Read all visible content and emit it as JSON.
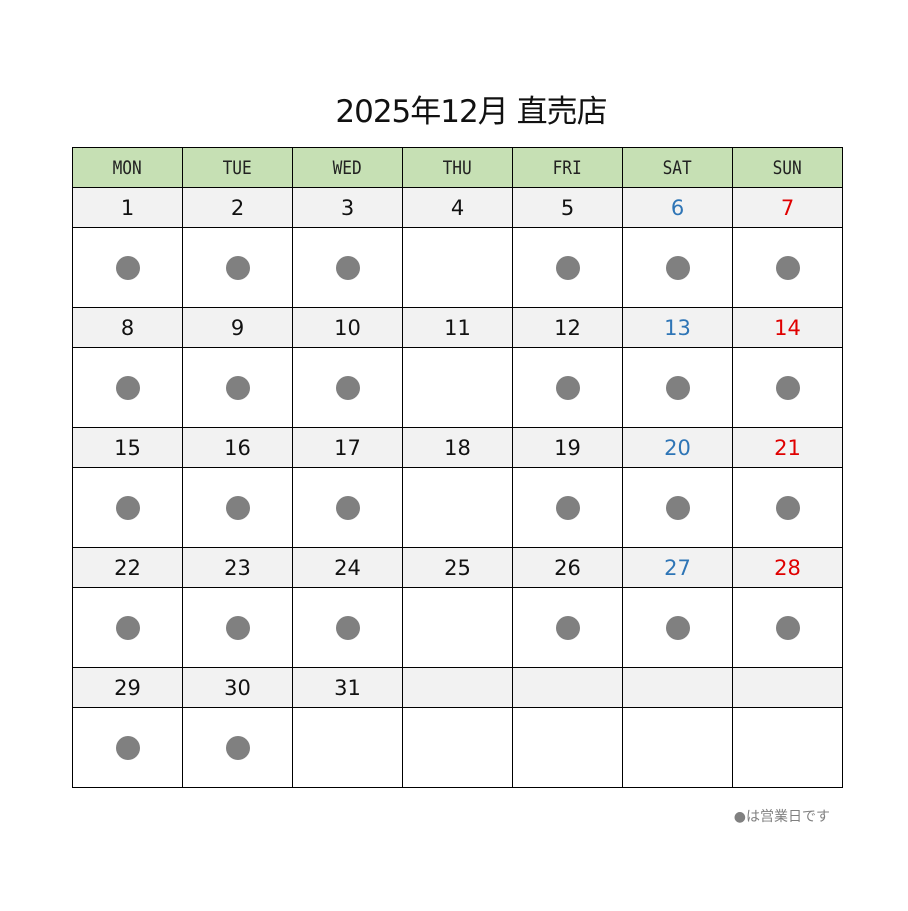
{
  "title": "2025年12月 直売店",
  "colors": {
    "header_bg": "#c6e0b4",
    "date_bg": "#f2f2f2",
    "saturday": "#2e75b6",
    "sunday": "#e00000",
    "open_dot": "#808080"
  },
  "weekdays": [
    "MON",
    "TUE",
    "WED",
    "THU",
    "FRI",
    "SAT",
    "SUN"
  ],
  "weeks": [
    [
      {
        "day": "1",
        "open": true
      },
      {
        "day": "2",
        "open": true
      },
      {
        "day": "3",
        "open": true
      },
      {
        "day": "4",
        "open": false
      },
      {
        "day": "5",
        "open": true
      },
      {
        "day": "6",
        "open": true
      },
      {
        "day": "7",
        "open": true
      }
    ],
    [
      {
        "day": "8",
        "open": true
      },
      {
        "day": "9",
        "open": true
      },
      {
        "day": "10",
        "open": true
      },
      {
        "day": "11",
        "open": false
      },
      {
        "day": "12",
        "open": true
      },
      {
        "day": "13",
        "open": true
      },
      {
        "day": "14",
        "open": true
      }
    ],
    [
      {
        "day": "15",
        "open": true
      },
      {
        "day": "16",
        "open": true
      },
      {
        "day": "17",
        "open": true
      },
      {
        "day": "18",
        "open": false
      },
      {
        "day": "19",
        "open": true
      },
      {
        "day": "20",
        "open": true
      },
      {
        "day": "21",
        "open": true
      }
    ],
    [
      {
        "day": "22",
        "open": true
      },
      {
        "day": "23",
        "open": true
      },
      {
        "day": "24",
        "open": true
      },
      {
        "day": "25",
        "open": false
      },
      {
        "day": "26",
        "open": true
      },
      {
        "day": "27",
        "open": true
      },
      {
        "day": "28",
        "open": true
      }
    ],
    [
      {
        "day": "29",
        "open": true
      },
      {
        "day": "30",
        "open": true
      },
      {
        "day": "31",
        "open": false
      },
      {
        "day": "",
        "open": false
      },
      {
        "day": "",
        "open": false
      },
      {
        "day": "",
        "open": false
      },
      {
        "day": "",
        "open": false
      }
    ]
  ],
  "legend": "●は営業日です"
}
